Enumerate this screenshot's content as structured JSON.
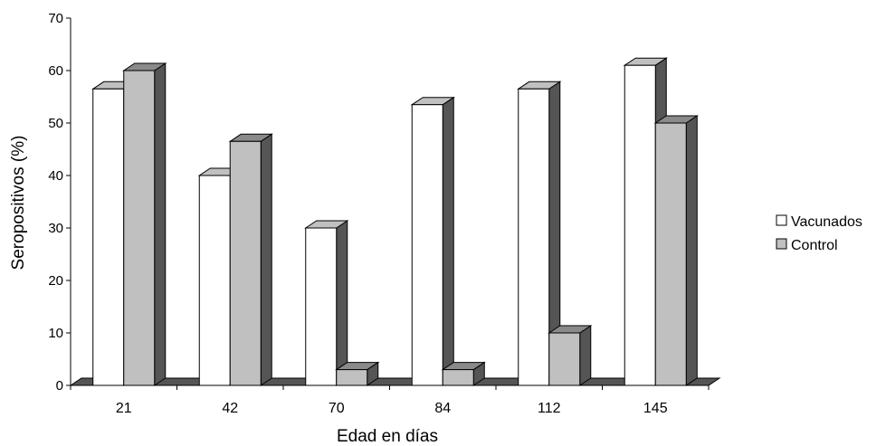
{
  "chart_data": {
    "type": "bar",
    "style": "3d-clustered",
    "categories": [
      "21",
      "42",
      "70",
      "84",
      "112",
      "145"
    ],
    "series": [
      {
        "name": "Vacunados",
        "values": [
          56.5,
          40,
          30,
          53.5,
          56.5,
          61
        ],
        "color": "#ffffff"
      },
      {
        "name": "Control",
        "values": [
          60,
          46.5,
          3,
          3,
          10,
          50
        ],
        "color": "#c0c0c0"
      }
    ],
    "xlabel": "Edad en días",
    "ylabel": "Seropositivos (%)",
    "ylim": [
      0,
      70
    ],
    "yticks": [
      0,
      10,
      20,
      30,
      40,
      50,
      60,
      70
    ],
    "grid": false,
    "legend_position": "right",
    "colors": {
      "side": "#555555",
      "top_vacunados": "#c0c0c0",
      "top_control": "#8a8a8a",
      "axis": "#000000"
    }
  }
}
